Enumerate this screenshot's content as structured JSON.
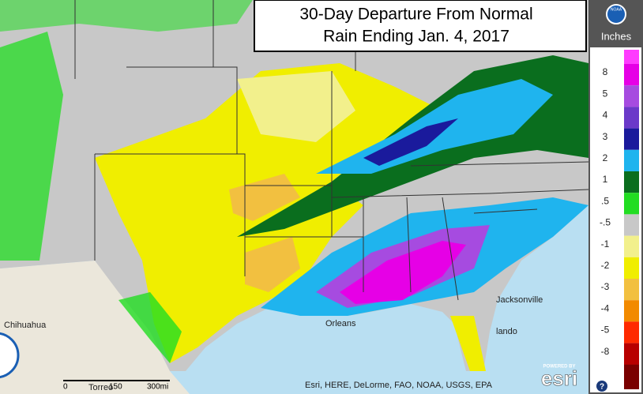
{
  "title": {
    "line1": "30-Day Departure From Normal",
    "line2": "Rain Ending Jan. 4, 2017"
  },
  "logo": "NOAA",
  "legend": {
    "unit": "Inches",
    "items": [
      {
        "label": "8",
        "color": "#e600e6"
      },
      {
        "label": "5",
        "color": "#a64be0"
      },
      {
        "label": "4",
        "color": "#6b39c9"
      },
      {
        "label": "3",
        "color": "#1a1a9c"
      },
      {
        "label": "2",
        "color": "#1fb4ee"
      },
      {
        "label": "1",
        "color": "#0a6e1e"
      },
      {
        "label": ".5",
        "color": "#22dd22"
      },
      {
        "label": "-.5",
        "color": "#c8c8c8"
      },
      {
        "label": "-1",
        "color": "#f2f08c"
      },
      {
        "label": "-2",
        "color": "#f0ee00"
      },
      {
        "label": "-3",
        "color": "#f2c040"
      },
      {
        "label": "-4",
        "color": "#f28a00"
      },
      {
        "label": "-5",
        "color": "#ff2a00"
      },
      {
        "label": "-8",
        "color": "#b80000"
      }
    ]
  },
  "cities": [
    "Chihuahua",
    "Jacksonville",
    "Orleans",
    "lando",
    "Torreo"
  ],
  "scale": [
    "0",
    "150",
    "300mi"
  ],
  "attribution": "Esri, HERE, DeLorme, FAO, NOAA, USGS, EPA",
  "esri": {
    "powered": "POWERED BY",
    "brand": "esri"
  },
  "help": "?"
}
